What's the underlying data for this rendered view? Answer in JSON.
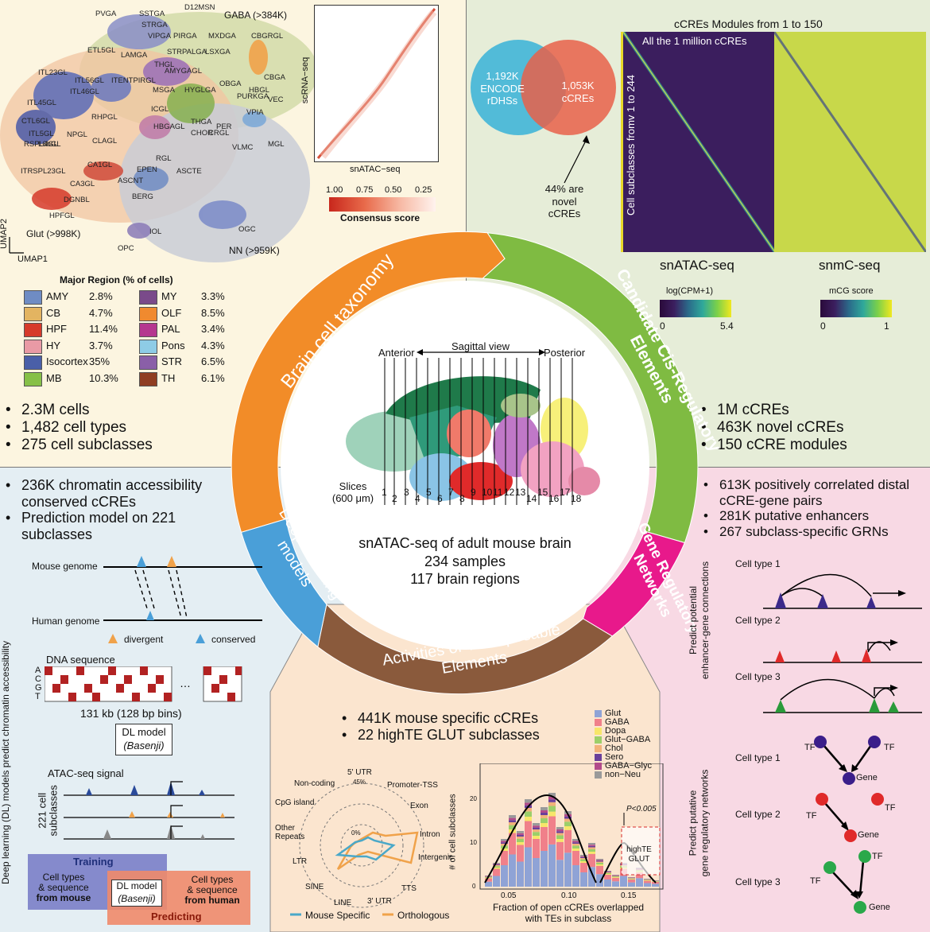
{
  "taxonomy": {
    "umap_clusters": [
      "PVGA",
      "SSTGA",
      "D12MSN",
      "STRGA",
      "VIPGA",
      "PIRGA",
      "MXDGA",
      "CBGRGL",
      "LAMGA",
      "THGL",
      "STRPALGA",
      "LSXGA",
      "ETL5GL",
      "ITL23GL",
      "ITL56GL",
      "ITENTPIRGL",
      "AMYGAGL",
      "MSGA",
      "OBGA",
      "HBGL",
      "CBGA",
      "ITL45GL",
      "ITL46GL",
      "HYGLGA",
      "PURKGA",
      "VEC",
      "ICGL",
      "VPIA",
      "RHPGL",
      "CTL6GL",
      "ITL5GL",
      "L6bGL",
      "NPGL",
      "HBGAGL",
      "THGA",
      "PER",
      "CHOR",
      "CRGL",
      "RSPL4GL",
      "CLAGL",
      "MGL",
      "VLMC",
      "ITRSPL23GL",
      "CA1GL",
      "RGL",
      "EPEN",
      "ASCTE",
      "CA3GL",
      "ASCNT",
      "DGNBL",
      "BERG",
      "HPFGL",
      "IOL",
      "OGC",
      "OPC"
    ],
    "group_gaba": "GABA (>384K)",
    "group_glut": "Glut (>998K)",
    "group_nn": "NN (>959K)",
    "axis_umap2": "UMAP2",
    "axis_umap1": "UMAP1",
    "heatmap_ylabel": "scRNA−seq",
    "heatmap_xlabel": "snATAC−seq",
    "consensus_ticks": [
      "1.00",
      "0.75",
      "0.50",
      "0.25"
    ],
    "consensus_label": "Consensus score",
    "region_title": "Major Region (% of cells)",
    "regions": [
      {
        "name": "AMY",
        "pct": "2.8%",
        "color": "#6f8cc4"
      },
      {
        "name": "CB",
        "pct": "4.7%",
        "color": "#e3b461"
      },
      {
        "name": "HPF",
        "pct": "11.4%",
        "color": "#d63a2b"
      },
      {
        "name": "HY",
        "pct": "3.7%",
        "color": "#e99aa5"
      },
      {
        "name": "Isocortex",
        "pct": "35%",
        "color": "#4a5fa8"
      },
      {
        "name": "MB",
        "pct": "10.3%",
        "color": "#86c048"
      },
      {
        "name": "MY",
        "pct": "3.3%",
        "color": "#7a4a8a"
      },
      {
        "name": "OLF",
        "pct": "8.5%",
        "color": "#f08a2f"
      },
      {
        "name": "PAL",
        "pct": "3.4%",
        "color": "#b5378f"
      },
      {
        "name": "Pons",
        "pct": "4.3%",
        "color": "#8ecce6"
      },
      {
        "name": "STR",
        "pct": "6.5%",
        "color": "#8a5fa8"
      },
      {
        "name": "TH",
        "pct": "6.1%",
        "color": "#8f3e22"
      }
    ],
    "stats": [
      "2.3M cells",
      "1,482 cell types",
      "275 cell subclasses"
    ]
  },
  "cre": {
    "venn_left": [
      "1,192K",
      "ENCODE",
      "rDHSs"
    ],
    "venn_right": [
      "1,053K",
      "cCREs"
    ],
    "novel_note": [
      "44% are",
      "novel",
      "cCREs"
    ],
    "modules_title": "cCREs Modules from 1 to 150",
    "all_label": "All the 1 million cCREs",
    "rows_label": "Cell subclasses fromv 1 to 244",
    "atac_label": "snATAC-seq",
    "mc_label": "snmC-seq",
    "cpm_label": "log(CPM+1)",
    "cpm_min": "0",
    "cpm_max": "5.4",
    "mcg_label": "mCG score",
    "mcg_min": "0",
    "mcg_max": "1",
    "stats": [
      "1M cCREs",
      "463K novel cCREs",
      "150 cCRE modules"
    ]
  },
  "ring": {
    "taxonomy": "Brain cell taxonomy",
    "cre": "Candidate Cis-Regulatory Elements",
    "grn": "Gene Regulatory Networks",
    "te": "Activities of Transposable Elements",
    "dl": "Deep Learning models",
    "colors": {
      "taxonomy": "#f28c28",
      "cre": "#7fbb42",
      "grn": "#e8198b",
      "te": "#8a5a3c",
      "dl": "#4a9fd8"
    }
  },
  "center": {
    "anterior": "Anterior",
    "sagittal": "Sagittal view",
    "posterior": "Posterior",
    "slices": "Slices",
    "slice_width": "(600 μm)",
    "slice_numbers": [
      "1",
      "2",
      "3",
      "4",
      "5",
      "6",
      "7",
      "8",
      "9",
      "10",
      "11",
      "12",
      "13",
      "14",
      "15",
      "16",
      "17",
      "18"
    ],
    "summary": [
      "snATAC-seq of adult mouse brain",
      "234 samples",
      "117 brain regions"
    ]
  },
  "grn": {
    "stats": [
      "613K positively correlated distal cCRE-gene pairs",
      "281K putative enhancers",
      "267 subclass-specific GRNs"
    ],
    "cell_types": [
      "Cell type 1",
      "Cell type 2",
      "Cell type 3"
    ],
    "side_label_1": [
      "Predict potential",
      "enhancer-gene connections"
    ],
    "side_label_2": [
      "Predict putative",
      "gene regulatory networks"
    ],
    "tf_label": "TF",
    "gene_label": "Gene"
  },
  "dl": {
    "stats": [
      "236K chromatin accessibility conserved cCREs",
      "Prediction model on 221 subclasses"
    ],
    "mouse_genome": "Mouse genome",
    "human_genome": "Human genome",
    "divergent": "divergent",
    "conserved": "conserved",
    "dna_title": "DNA sequence",
    "bases": [
      "A",
      "C",
      "G",
      "T"
    ],
    "bins_label": "131 kb (128 bp bins)",
    "model_label": "DL model",
    "model_name": "(Basenji)",
    "atac_signal": "ATAC-seq signal",
    "subclasses": [
      "221 cell",
      "subclasses"
    ],
    "side_label": "Deep learning (DL) models predict chromatin accessibility",
    "training": "Training",
    "predicting": "Predicting",
    "train_in": [
      "Cell types",
      "& sequence",
      "from mouse"
    ],
    "pred_out": [
      "Cell types",
      "& sequence",
      "from human"
    ]
  },
  "te": {
    "stats": [
      "441K mouse specific cCREs",
      "22 highTE GLUT subclasses"
    ],
    "radar_axes": [
      "5' UTR",
      "Promoter-TSS",
      "Exon",
      "Intron",
      "Intergenic",
      "TTS",
      "3' UTR",
      "LINE",
      "SINE",
      "LTR",
      "Other Repeats",
      "CpG island",
      "Non-coding"
    ],
    "radar_ring_labels": [
      "45%",
      "0%"
    ],
    "legend_mouse": "Mouse Specific",
    "legend_orth": "Orthologous",
    "hist_legend": [
      {
        "name": "Glut",
        "color": "#8fa3d6"
      },
      {
        "name": "GABA",
        "color": "#f0808a"
      },
      {
        "name": "Dopa",
        "color": "#f7e66a"
      },
      {
        "name": "Glut−GABA",
        "color": "#9ccf6a"
      },
      {
        "name": "Chol",
        "color": "#f2b27a"
      },
      {
        "name": "Sero",
        "color": "#6a3f9a"
      },
      {
        "name": "GABA−Glyc",
        "color": "#b24a8a"
      },
      {
        "name": "non−Neu",
        "color": "#9a9a9a"
      }
    ],
    "hist_ylabel": "# of cell subclasses",
    "hist_xlabel": [
      "Fraction of open cCREs overlapped",
      "with TEs in subclass"
    ],
    "hist_xticks": [
      "0.05",
      "0.10",
      "0.15"
    ],
    "hist_yticks": [
      "0",
      "10",
      "20"
    ],
    "pvalue": "P<0.005",
    "highte": [
      "highTE",
      "GLUT"
    ]
  }
}
